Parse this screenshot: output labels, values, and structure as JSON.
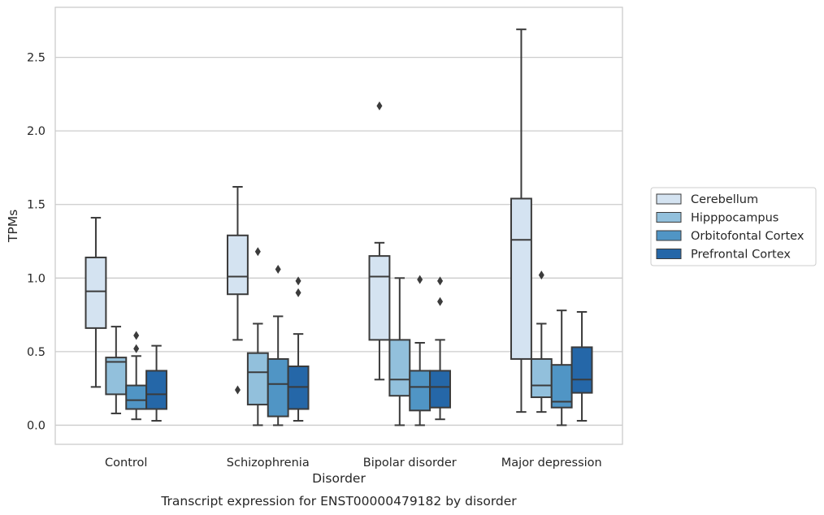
{
  "chart_data": {
    "type": "box",
    "title": "",
    "xlabel": "Disorder",
    "ylabel": "TPMs",
    "caption": "Transcript expression for ENST00000479182 by disorder",
    "ylim": [
      -0.13,
      2.84
    ],
    "yticks": [
      "0.0",
      "0.5",
      "1.0",
      "1.5",
      "2.0",
      "2.5"
    ],
    "grid": true,
    "legend_position": "right",
    "categories": [
      "Control",
      "Schizophrenia",
      "Bipolar disorder",
      "Major depression"
    ],
    "series": [
      {
        "name": "Cerebellum",
        "color": "#d4e3f1",
        "boxes": [
          {
            "whislo": 0.26,
            "q1": 0.66,
            "med": 0.91,
            "q3": 1.14,
            "whishi": 1.41,
            "fliers": []
          },
          {
            "whislo": 0.58,
            "q1": 0.89,
            "med": 1.01,
            "q3": 1.29,
            "whishi": 1.62,
            "fliers": [
              0.24
            ]
          },
          {
            "whislo": 0.31,
            "q1": 0.58,
            "med": 1.01,
            "q3": 1.15,
            "whishi": 1.24,
            "fliers": [
              2.17
            ]
          },
          {
            "whislo": 0.09,
            "q1": 0.45,
            "med": 1.26,
            "q3": 1.54,
            "whishi": 2.69,
            "fliers": []
          }
        ]
      },
      {
        "name": "Hipppocampus",
        "color": "#92c0dc",
        "boxes": [
          {
            "whislo": 0.08,
            "q1": 0.21,
            "med": 0.43,
            "q3": 0.46,
            "whishi": 0.67,
            "fliers": []
          },
          {
            "whislo": 0.0,
            "q1": 0.14,
            "med": 0.36,
            "q3": 0.49,
            "whishi": 0.69,
            "fliers": [
              1.18
            ]
          },
          {
            "whislo": 0.0,
            "q1": 0.2,
            "med": 0.31,
            "q3": 0.58,
            "whishi": 1.0,
            "fliers": []
          },
          {
            "whislo": 0.09,
            "q1": 0.19,
            "med": 0.27,
            "q3": 0.45,
            "whishi": 0.69,
            "fliers": [
              1.02
            ]
          }
        ]
      },
      {
        "name": "Orbitofontal Cortex",
        "color": "#5095c5",
        "boxes": [
          {
            "whislo": 0.04,
            "q1": 0.11,
            "med": 0.17,
            "q3": 0.27,
            "whishi": 0.47,
            "fliers": [
              0.52,
              0.61
            ]
          },
          {
            "whislo": 0.0,
            "q1": 0.06,
            "med": 0.28,
            "q3": 0.45,
            "whishi": 0.74,
            "fliers": [
              1.06
            ]
          },
          {
            "whislo": 0.0,
            "q1": 0.1,
            "med": 0.26,
            "q3": 0.37,
            "whishi": 0.56,
            "fliers": [
              0.99
            ]
          },
          {
            "whislo": 0.0,
            "q1": 0.12,
            "med": 0.16,
            "q3": 0.41,
            "whishi": 0.78,
            "fliers": []
          }
        ]
      },
      {
        "name": "Prefrontal Cortex",
        "color": "#2567a8",
        "boxes": [
          {
            "whislo": 0.03,
            "q1": 0.11,
            "med": 0.21,
            "q3": 0.37,
            "whishi": 0.54,
            "fliers": []
          },
          {
            "whislo": 0.03,
            "q1": 0.11,
            "med": 0.26,
            "q3": 0.4,
            "whishi": 0.62,
            "fliers": [
              0.9,
              0.98
            ]
          },
          {
            "whislo": 0.04,
            "q1": 0.12,
            "med": 0.26,
            "q3": 0.37,
            "whishi": 0.58,
            "fliers": [
              0.84,
              0.98
            ]
          },
          {
            "whislo": 0.03,
            "q1": 0.22,
            "med": 0.31,
            "q3": 0.53,
            "whishi": 0.77,
            "fliers": []
          }
        ]
      }
    ]
  }
}
